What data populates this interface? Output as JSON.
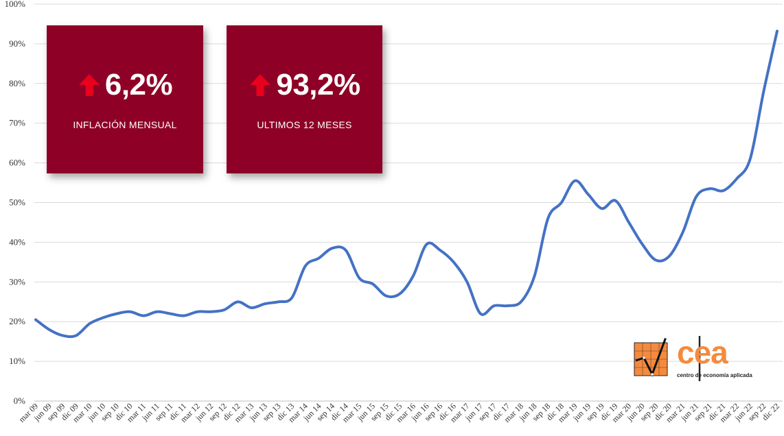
{
  "chart_data": {
    "type": "line",
    "title": "",
    "xlabel": "",
    "ylabel": "",
    "ylim": [
      0,
      100
    ],
    "y_ticks": [
      "0%",
      "10%",
      "20%",
      "30%",
      "40%",
      "50%",
      "60%",
      "70%",
      "80%",
      "90%",
      "100%"
    ],
    "grid": true,
    "line_color": "#4472c4",
    "categories": [
      "mar 09",
      "jun 09",
      "sep 09",
      "dic 09",
      "mar 10",
      "jun 10",
      "sep 10",
      "dic 10",
      "mar 11",
      "jun 11",
      "sep 11",
      "dic 11",
      "mar 12",
      "jun 12",
      "sep 12",
      "dic 12",
      "mar 13",
      "jun 13",
      "sep 13",
      "dic 13",
      "mar 14",
      "jun 14",
      "sep 14",
      "dic 14",
      "mar 15",
      "jun 15",
      "sep 15",
      "dic 15",
      "mar 16",
      "jun 16",
      "sep 16",
      "dic 16",
      "mar 17",
      "jun 17",
      "sep 17",
      "dic 17",
      "mar 18",
      "jun 18",
      "sep 18",
      "dic 18",
      "mar 19",
      "jun 19",
      "sep 19",
      "dic 19",
      "mar 20",
      "jun 20",
      "sep 20",
      "dic 20",
      "mar 21",
      "jun 21",
      "sep 21",
      "dic 21",
      "mar 22",
      "jun 22",
      "sep 22",
      "dic 22"
    ],
    "series": [
      {
        "values": [
          20.5,
          18.0,
          16.5,
          16.5,
          19.5,
          21.0,
          22.0,
          22.5,
          21.5,
          22.5,
          22.0,
          21.5,
          22.5,
          22.5,
          23.0,
          25.0,
          23.5,
          24.5,
          25.0,
          26.0,
          34.0,
          36.0,
          38.5,
          38.0,
          31.0,
          29.5,
          26.5,
          27.0,
          31.5,
          39.5,
          38.0,
          35.0,
          30.0,
          22.0,
          24.0,
          24.0,
          25.0,
          31.5,
          46.0,
          50.0,
          55.5,
          52.0,
          48.5,
          50.5,
          45.0,
          39.5,
          35.5,
          36.5,
          42.5,
          51.5,
          53.5,
          53.0,
          56.0,
          61.0,
          78.0,
          93.2
        ]
      }
    ]
  },
  "kpis": [
    {
      "value": "6,2%",
      "caption": "INFLACIÓN MENSUAL"
    },
    {
      "value": "93,2%",
      "caption": "ULTIMOS 12 MESES"
    }
  ],
  "kpi_colors": {
    "background": "#8e0026",
    "arrow": "#e8001c"
  },
  "logo": {
    "text": "cea",
    "subtitle": "centro de economía aplicada",
    "color": "#f58a3e"
  }
}
